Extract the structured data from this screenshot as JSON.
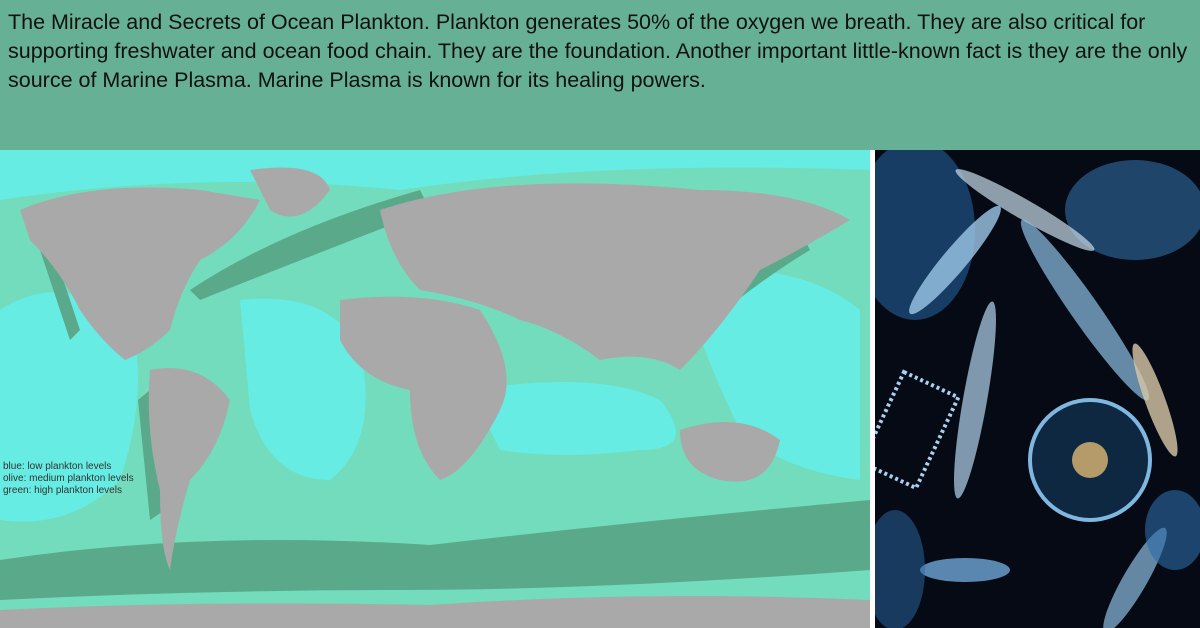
{
  "header": {
    "text": "The Miracle and Secrets of Ocean Plankton. Plankton generates 50% of the oxygen we breath. They are also critical for supporting freshwater and ocean food chain. They are the foundation. Another important little-known fact is they are the only source of Marine Plasma. Marine Plasma is known for its healing powers."
  },
  "map": {
    "legend": [
      "blue: low plankton levels",
      "olive: medium plankton levels",
      "green: high plankton levels"
    ],
    "colors": {
      "low": "#66ece3",
      "medium": "#72dcbc",
      "high": "#5aa98a",
      "land": "#a9a9a9"
    }
  }
}
